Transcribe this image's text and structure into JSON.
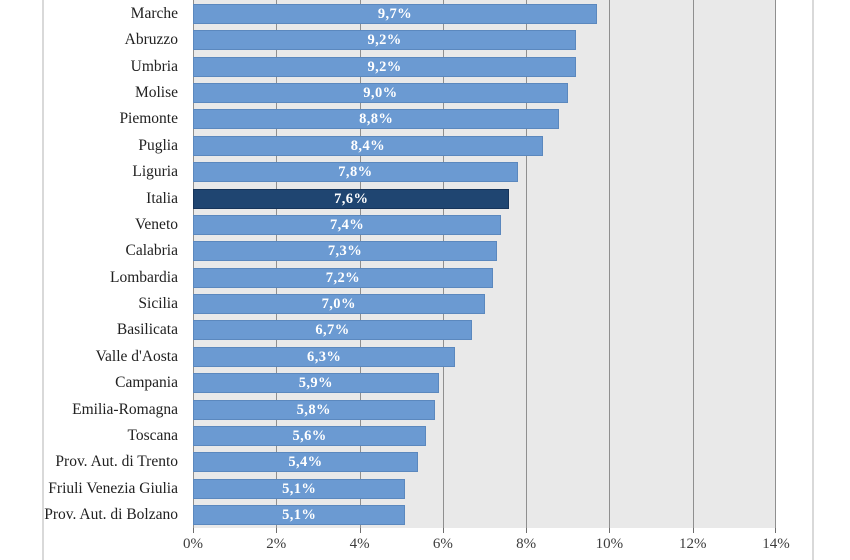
{
  "chart_data": {
    "type": "bar",
    "orientation": "horizontal",
    "title": "",
    "xlabel": "",
    "ylabel": "",
    "categories": [
      "Marche",
      "Abruzzo",
      "Umbria",
      "Molise",
      "Piemonte",
      "Puglia",
      "Liguria",
      "Italia",
      "Veneto",
      "Calabria",
      "Lombardia",
      "Sicilia",
      "Basilicata",
      "Valle d'Aosta",
      "Campania",
      "Emilia-Romagna",
      "Toscana",
      "Prov. Aut. di Trento",
      "Friuli Venezia Giulia",
      "Prov. Aut. di Bolzano"
    ],
    "values": [
      9.7,
      9.2,
      9.2,
      9.0,
      8.8,
      8.4,
      7.8,
      7.6,
      7.4,
      7.3,
      7.2,
      7.0,
      6.7,
      6.3,
      5.9,
      5.8,
      5.6,
      5.4,
      5.1,
      5.1
    ],
    "value_labels": [
      "9,7%",
      "9,2%",
      "9,2%",
      "9,0%",
      "8,8%",
      "8,4%",
      "7,8%",
      "7,6%",
      "7,4%",
      "7,3%",
      "7,2%",
      "7,0%",
      "6,7%",
      "6,3%",
      "5,9%",
      "5,8%",
      "5,6%",
      "5,4%",
      "5,1%",
      "5,1%"
    ],
    "highlight_category": "Italia",
    "highlight_index": 7,
    "x_tick_labels": [
      "0%",
      "2%",
      "4%",
      "6%",
      "8%",
      "10%",
      "12%",
      "14%"
    ],
    "x_tick_values": [
      0,
      2,
      4,
      6,
      8,
      10,
      12,
      14
    ],
    "xlim": [
      0,
      14
    ],
    "grid": true,
    "legend": false,
    "top_cropped": true,
    "colors": {
      "bar": "#6B9AD2",
      "bar_border": "#5B88BE",
      "highlight_bar": "#1F4571",
      "highlight_bar_border": "#16345A",
      "plot_background": "#E9E9E9",
      "gridline": "#8F8F8F",
      "axis_tick": "#6E6E6E",
      "frame_line": "#D9D9D9",
      "category_text": "#212121",
      "axis_text": "#3D3D3D",
      "value_text": "#FFFFFF"
    }
  }
}
